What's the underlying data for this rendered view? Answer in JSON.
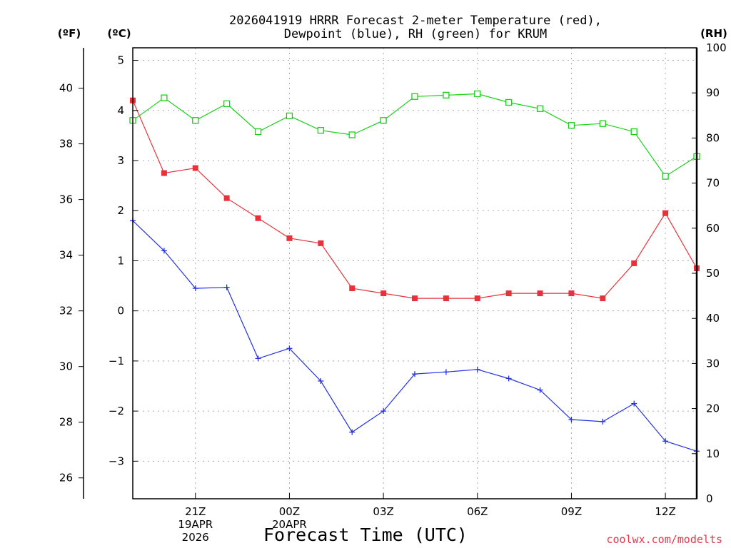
{
  "chart_data": {
    "type": "line",
    "title_lines": [
      "2026041919 HRRR Forecast 2-meter Temperature (red),",
      "Dewpoint (blue), RH (green) for KRUM"
    ],
    "unit_labels": {
      "left_f": "(ºF)",
      "left_c": "(ºC)",
      "right_rh": "(RH)"
    },
    "xlabel": "Forecast Time (UTC)",
    "credit": "coolwx.com/modelts",
    "x_ticks": [
      {
        "hour": 2,
        "lines": [
          "21Z",
          "19APR",
          "2026"
        ]
      },
      {
        "hour": 5,
        "lines": [
          "00Z",
          "20APR"
        ]
      },
      {
        "hour": 8,
        "lines": [
          "03Z"
        ]
      },
      {
        "hour": 11,
        "lines": [
          "06Z"
        ]
      },
      {
        "hour": 14,
        "lines": [
          "09Z"
        ]
      },
      {
        "hour": 17,
        "lines": [
          "12Z"
        ]
      }
    ],
    "x_range": [
      0,
      18
    ],
    "celsius_axis": {
      "range": [
        -3.75,
        5.25
      ],
      "ticks": [
        "5",
        "4",
        "3",
        "2",
        "1",
        "0",
        "−1",
        "−2",
        "−3"
      ],
      "tick_values": [
        5,
        4,
        3,
        2,
        1,
        0,
        -1,
        -2,
        -3
      ]
    },
    "fahrenheit_axis": {
      "ticks": [
        "40",
        "38",
        "36",
        "34",
        "32",
        "30",
        "28",
        "26"
      ],
      "tick_values": [
        40,
        38,
        36,
        34,
        32,
        30,
        28,
        26
      ]
    },
    "rh_axis": {
      "range": [
        0,
        100
      ],
      "ticks": [
        "100",
        "90",
        "80",
        "70",
        "60",
        "50",
        "40",
        "30",
        "20",
        "10",
        "0"
      ],
      "tick_values": [
        100,
        90,
        80,
        70,
        60,
        50,
        40,
        30,
        20,
        10,
        0
      ]
    },
    "x_hours": [
      0,
      1,
      2,
      3,
      4,
      5,
      6,
      7,
      8,
      9,
      10,
      11,
      12,
      13,
      14,
      15,
      16,
      17,
      18
    ],
    "series": [
      {
        "name": "Temperature",
        "unit": "C",
        "color": "#e8313a",
        "marker": "filled-square",
        "values": [
          4.2,
          2.75,
          2.85,
          2.25,
          1.85,
          1.45,
          1.35,
          0.45,
          0.35,
          0.25,
          0.25,
          0.25,
          0.35,
          0.35,
          0.35,
          0.25,
          0.95,
          1.95,
          0.85
        ]
      },
      {
        "name": "Dewpoint",
        "unit": "C",
        "color": "#2332e0",
        "marker": "plus",
        "values": [
          1.8,
          1.2,
          0.45,
          0.47,
          -0.95,
          -0.75,
          -1.4,
          -2.42,
          -2.0,
          -1.26,
          -1.22,
          -1.17,
          -1.35,
          -1.58,
          -2.17,
          -2.21,
          -1.85,
          -2.6,
          -2.8
        ]
      },
      {
        "name": "RH",
        "unit": "%",
        "color": "#19d019",
        "marker": "open-square",
        "values": [
          83.9,
          88.9,
          83.9,
          87.6,
          81.4,
          84.9,
          81.7,
          80.7,
          83.9,
          89.2,
          89.5,
          89.8,
          87.9,
          86.5,
          82.8,
          83.2,
          81.4,
          71.5,
          75.9
        ]
      }
    ]
  }
}
